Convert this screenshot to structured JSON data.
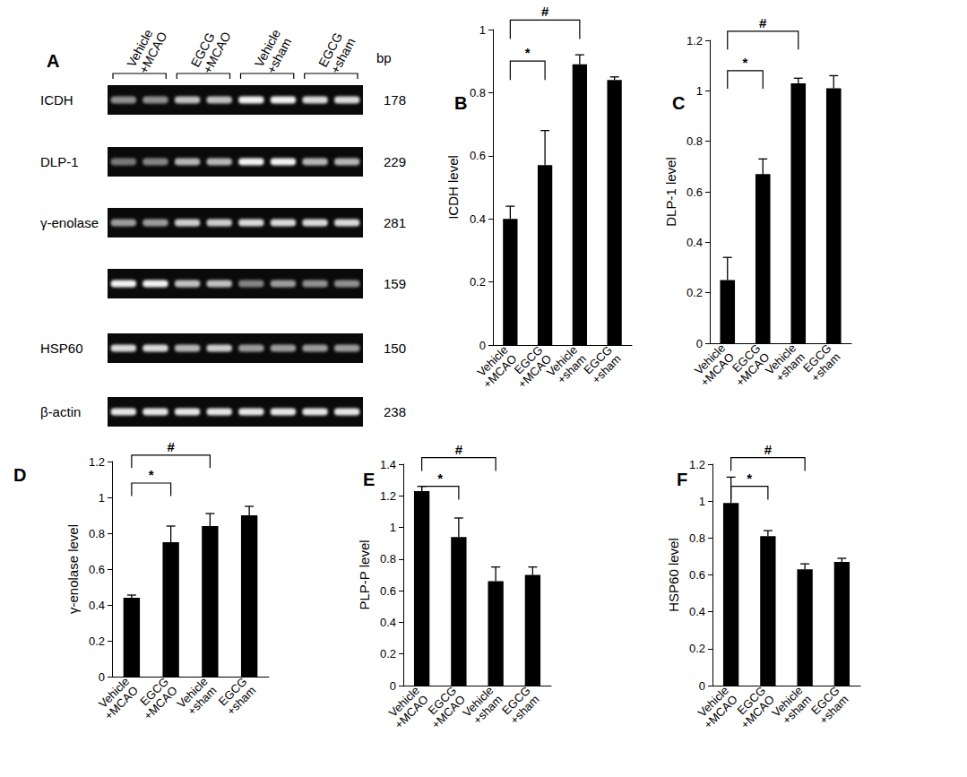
{
  "gel": {
    "label": "A",
    "unit_label": "bp",
    "groups": [
      "Vehicle +MCAO",
      "EGCG +MCAO",
      "Vehicle +sham",
      "EGCG +sham"
    ],
    "rows": [
      {
        "name": "ICDH",
        "bp": 178,
        "band_intensity": [
          0.55,
          0.55,
          0.75,
          0.75,
          0.95,
          0.95,
          0.85,
          0.85
        ]
      },
      {
        "name": "DLP-1",
        "bp": 229,
        "band_intensity": [
          0.45,
          0.5,
          0.7,
          0.7,
          0.95,
          0.95,
          0.7,
          0.7
        ]
      },
      {
        "name": "γ-enolase",
        "bp": 281,
        "band_intensity": [
          0.6,
          0.6,
          0.8,
          0.8,
          0.85,
          0.85,
          0.85,
          0.85
        ]
      },
      {
        "name": null,
        "bp": 159,
        "band_intensity": [
          0.95,
          0.95,
          0.75,
          0.75,
          0.5,
          0.6,
          0.55,
          0.55
        ]
      },
      {
        "name": "HSP60",
        "bp": 150,
        "band_intensity": [
          0.85,
          0.85,
          0.7,
          0.8,
          0.6,
          0.6,
          0.6,
          0.6
        ]
      },
      {
        "name": "β-actin",
        "bp": 238,
        "band_intensity": [
          0.9,
          0.9,
          0.9,
          0.9,
          0.9,
          0.9,
          0.9,
          0.9
        ]
      }
    ]
  },
  "chart_data": [
    {
      "type": "bar",
      "title": "B",
      "ylabel": "ICDH level",
      "categories": [
        "Vehicle +MCAO",
        "EGCG +MCAO",
        "Vehicle +sham",
        "EGCG +sham"
      ],
      "values": [
        0.4,
        0.57,
        0.89,
        0.84
      ],
      "errors": [
        0.04,
        0.11,
        0.03,
        0.01
      ],
      "color": "#000000",
      "ylim": [
        0,
        1
      ],
      "yticks": [
        0,
        0.2,
        0.4,
        0.6,
        0.8,
        1
      ],
      "grid": false,
      "annotations": [
        {
          "text": "*",
          "from": "Vehicle +MCAO",
          "to": "EGCG +MCAO"
        },
        {
          "text": "#",
          "from": "Vehicle +MCAO",
          "to": "Vehicle +sham"
        }
      ]
    },
    {
      "type": "bar",
      "title": "C",
      "ylabel": "DLP-1 level",
      "categories": [
        "Vehicle +MCAO",
        "EGCG +MCAO",
        "Vehicle +sham",
        "EGCG +sham"
      ],
      "values": [
        0.25,
        0.67,
        1.03,
        1.01
      ],
      "errors": [
        0.09,
        0.06,
        0.02,
        0.05
      ],
      "color": "#000000",
      "ylim": [
        0,
        1.2
      ],
      "yticks": [
        0,
        0.2,
        0.4,
        0.6,
        0.8,
        1,
        1.2
      ],
      "grid": false,
      "annotations": [
        {
          "text": "*",
          "from": "Vehicle +MCAO",
          "to": "EGCG +MCAO"
        },
        {
          "text": "#",
          "from": "Vehicle +MCAO",
          "to": "Vehicle +sham"
        }
      ]
    },
    {
      "type": "bar",
      "title": "D",
      "ylabel": "γ-enolase level",
      "categories": [
        "Vehicle +MCAO",
        "EGCG +MCAO",
        "Vehicle +sham",
        "EGCG +sham"
      ],
      "values": [
        0.44,
        0.75,
        0.84,
        0.9
      ],
      "errors": [
        0.015,
        0.09,
        0.07,
        0.05
      ],
      "color": "#000000",
      "ylim": [
        0,
        1.2
      ],
      "yticks": [
        0,
        0.2,
        0.4,
        0.6,
        0.8,
        1,
        1.2
      ],
      "grid": false,
      "annotations": [
        {
          "text": "*",
          "from": "Vehicle +MCAO",
          "to": "EGCG +MCAO"
        },
        {
          "text": "#",
          "from": "Vehicle +MCAO",
          "to": "Vehicle +sham"
        }
      ]
    },
    {
      "type": "bar",
      "title": "E",
      "ylabel": "PLP-P level",
      "categories": [
        "Vehicle +MCAO",
        "EGCG +MCAO",
        "Vehicle +sham",
        "EGCG +sham"
      ],
      "values": [
        1.23,
        0.94,
        0.66,
        0.7
      ],
      "errors": [
        0.03,
        0.12,
        0.09,
        0.05
      ],
      "color": "#000000",
      "ylim": [
        0,
        1.4
      ],
      "yticks": [
        0,
        0.2,
        0.4,
        0.6,
        0.8,
        1,
        1.2,
        1.4
      ],
      "grid": false,
      "annotations": [
        {
          "text": "*",
          "from": "Vehicle +MCAO",
          "to": "EGCG +MCAO"
        },
        {
          "text": "#",
          "from": "Vehicle +MCAO",
          "to": "Vehicle +sham"
        }
      ]
    },
    {
      "type": "bar",
      "title": "F",
      "ylabel": "HSP60 level",
      "categories": [
        "Vehicle +MCAO",
        "EGCG +MCAO",
        "Vehicle +sham",
        "EGCG +sham"
      ],
      "values": [
        0.99,
        0.81,
        0.63,
        0.67
      ],
      "errors": [
        0.14,
        0.03,
        0.03,
        0.02
      ],
      "color": "#000000",
      "ylim": [
        0,
        1.2
      ],
      "yticks": [
        0,
        0.2,
        0.4,
        0.6,
        0.8,
        1,
        1.2
      ],
      "grid": false,
      "annotations": [
        {
          "text": "*",
          "from": "Vehicle +MCAO",
          "to": "EGCG +MCAO"
        },
        {
          "text": "#",
          "from": "Vehicle +MCAO",
          "to": "Vehicle +sham"
        }
      ]
    }
  ]
}
